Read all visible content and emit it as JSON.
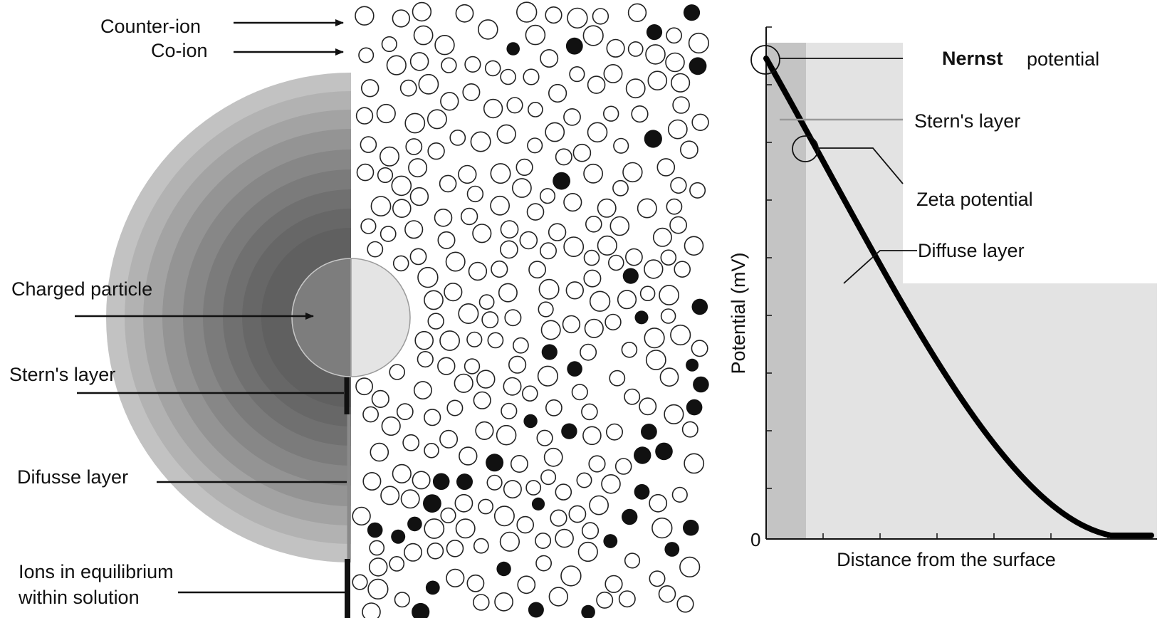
{
  "left_labels": {
    "counter_ion": "Counter-ion",
    "co_ion": "Co-ion",
    "charged_particle": "Charged particle",
    "sterns_layer": "Stern's layer",
    "diffuse_layer": "Difusse layer",
    "ions_equilibrium_line1": "Ions in equilibrium",
    "ions_equilibrium_line2": "within solution"
  },
  "chart": {
    "ylabel": "Potential (mV)",
    "xlabel": "Distance from the surface",
    "y_zero_tick": "0",
    "annotations": {
      "nernst_bold": "Nernst",
      "nernst_rest": "potential",
      "sterns_layer": "Stern's layer",
      "zeta_potential": "Zeta potential",
      "diffuse_layer": "Diffuse layer"
    }
  },
  "colors": {
    "ink": "#111111",
    "stern_region": "#c4c4c4",
    "diffuse_region": "#e3e3e3",
    "particle_light": "#e4e4e4",
    "particle_dark": "#7d7d7d"
  }
}
